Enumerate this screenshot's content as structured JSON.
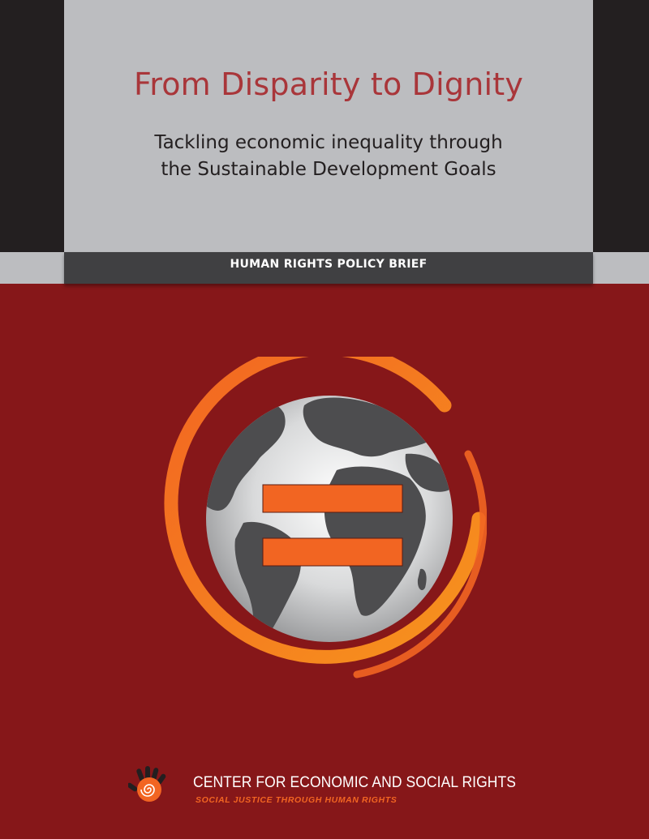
{
  "cover": {
    "title": "From Disparity to Dignity",
    "subtitle_line1": "Tackling economic inequality through",
    "subtitle_line2": "the Sustainable Development Goals",
    "brief_label": "HUMAN RIGHTS POLICY BRIEF"
  },
  "organization": {
    "name": "CENTER FOR ECONOMIC AND SOCIAL RIGHTS",
    "tagline": "SOCIAL JUSTICE THROUGH HUMAN RIGHTS"
  },
  "colors": {
    "background_red": "#861719",
    "title_red": "#a9363a",
    "panel_gray": "#bcbdc0",
    "dark": "#231f20",
    "orange": "#f26522"
  },
  "icons": {
    "emblem": "globe-equality-icon",
    "logo": "hand-spiral-logo-icon"
  }
}
